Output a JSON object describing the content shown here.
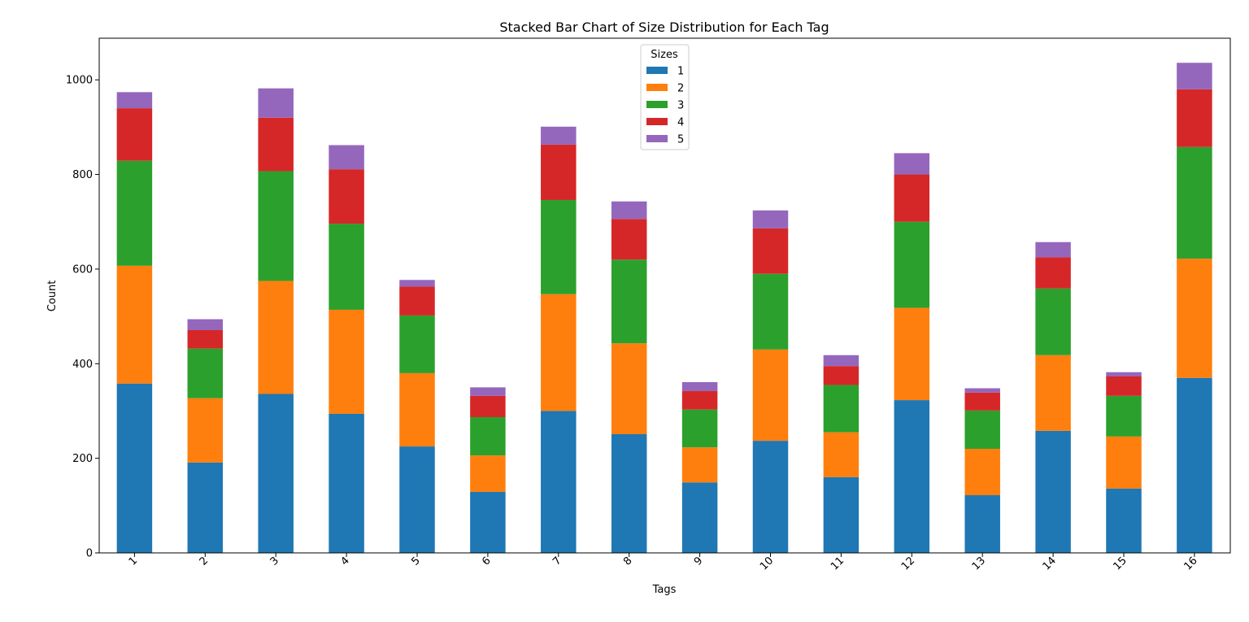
{
  "chart_data": {
    "type": "bar",
    "stacked": true,
    "title": "Stacked Bar Chart of Size Distribution for Each Tag",
    "xlabel": "Tags",
    "ylabel": "Count",
    "ylim": [
      0,
      1088
    ],
    "yticks": [
      0,
      200,
      400,
      600,
      800,
      1000
    ],
    "categories": [
      "1",
      "2",
      "3",
      "4",
      "5",
      "6",
      "7",
      "8",
      "9",
      "10",
      "11",
      "12",
      "13",
      "14",
      "15",
      "16"
    ],
    "legend": {
      "title": "Sizes",
      "placement": "top-center"
    },
    "grid": false,
    "series": [
      {
        "name": "1",
        "color": "#1f77b4",
        "values": [
          358,
          191,
          336,
          294,
          225,
          129,
          300,
          251,
          149,
          237,
          160,
          323,
          122,
          258,
          136,
          370
        ]
      },
      {
        "name": "2",
        "color": "#ff7f0e",
        "values": [
          249,
          136,
          239,
          220,
          155,
          77,
          247,
          192,
          74,
          193,
          95,
          195,
          98,
          160,
          110,
          252
        ]
      },
      {
        "name": "3",
        "color": "#2ca02c",
        "values": [
          222,
          105,
          232,
          182,
          122,
          81,
          199,
          177,
          80,
          160,
          100,
          182,
          81,
          141,
          86,
          236
        ]
      },
      {
        "name": "4",
        "color": "#d62728",
        "values": [
          111,
          39,
          113,
          115,
          61,
          45,
          117,
          86,
          39,
          96,
          40,
          100,
          38,
          66,
          41,
          122
        ]
      },
      {
        "name": "5",
        "color": "#9467bd",
        "values": [
          34,
          23,
          62,
          51,
          14,
          18,
          38,
          37,
          19,
          38,
          23,
          45,
          9,
          32,
          9,
          56
        ]
      }
    ]
  }
}
